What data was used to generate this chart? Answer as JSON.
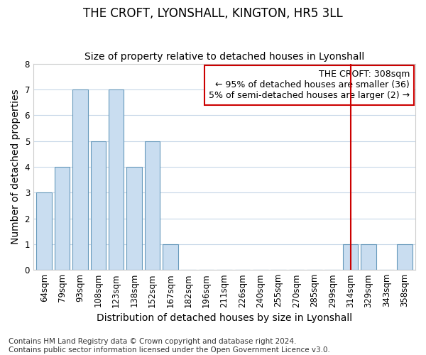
{
  "title": "THE CROFT, LYONSHALL, KINGTON, HR5 3LL",
  "subtitle": "Size of property relative to detached houses in Lyonshall",
  "xlabel": "Distribution of detached houses by size in Lyonshall",
  "ylabel": "Number of detached properties",
  "categories": [
    "64sqm",
    "79sqm",
    "93sqm",
    "108sqm",
    "123sqm",
    "138sqm",
    "152sqm",
    "167sqm",
    "182sqm",
    "196sqm",
    "211sqm",
    "226sqm",
    "240sqm",
    "255sqm",
    "270sqm",
    "285sqm",
    "299sqm",
    "314sqm",
    "329sqm",
    "343sqm",
    "358sqm"
  ],
  "values": [
    3,
    4,
    7,
    5,
    7,
    4,
    5,
    1,
    0,
    0,
    0,
    0,
    0,
    0,
    0,
    0,
    0,
    1,
    1,
    0,
    1
  ],
  "bar_color": "#c9ddf0",
  "bar_edge_color": "#6699bb",
  "vline_x_index": 17,
  "vline_color": "#cc0000",
  "annotation_text": "THE CROFT: 308sqm\n← 95% of detached houses are smaller (36)\n5% of semi-detached houses are larger (2) →",
  "annotation_box_color": "#ffffff",
  "annotation_box_edge_color": "#cc0000",
  "ylim": [
    0,
    8
  ],
  "yticks": [
    0,
    1,
    2,
    3,
    4,
    5,
    6,
    7,
    8
  ],
  "footer_text": "Contains HM Land Registry data © Crown copyright and database right 2024.\nContains public sector information licensed under the Open Government Licence v3.0.",
  "background_color": "#ffffff",
  "plot_bg_color": "#ffffff",
  "grid_color": "#c8d8e8",
  "title_fontsize": 12,
  "subtitle_fontsize": 10,
  "axis_label_fontsize": 10,
  "tick_fontsize": 8.5,
  "annotation_fontsize": 9,
  "footer_fontsize": 7.5
}
